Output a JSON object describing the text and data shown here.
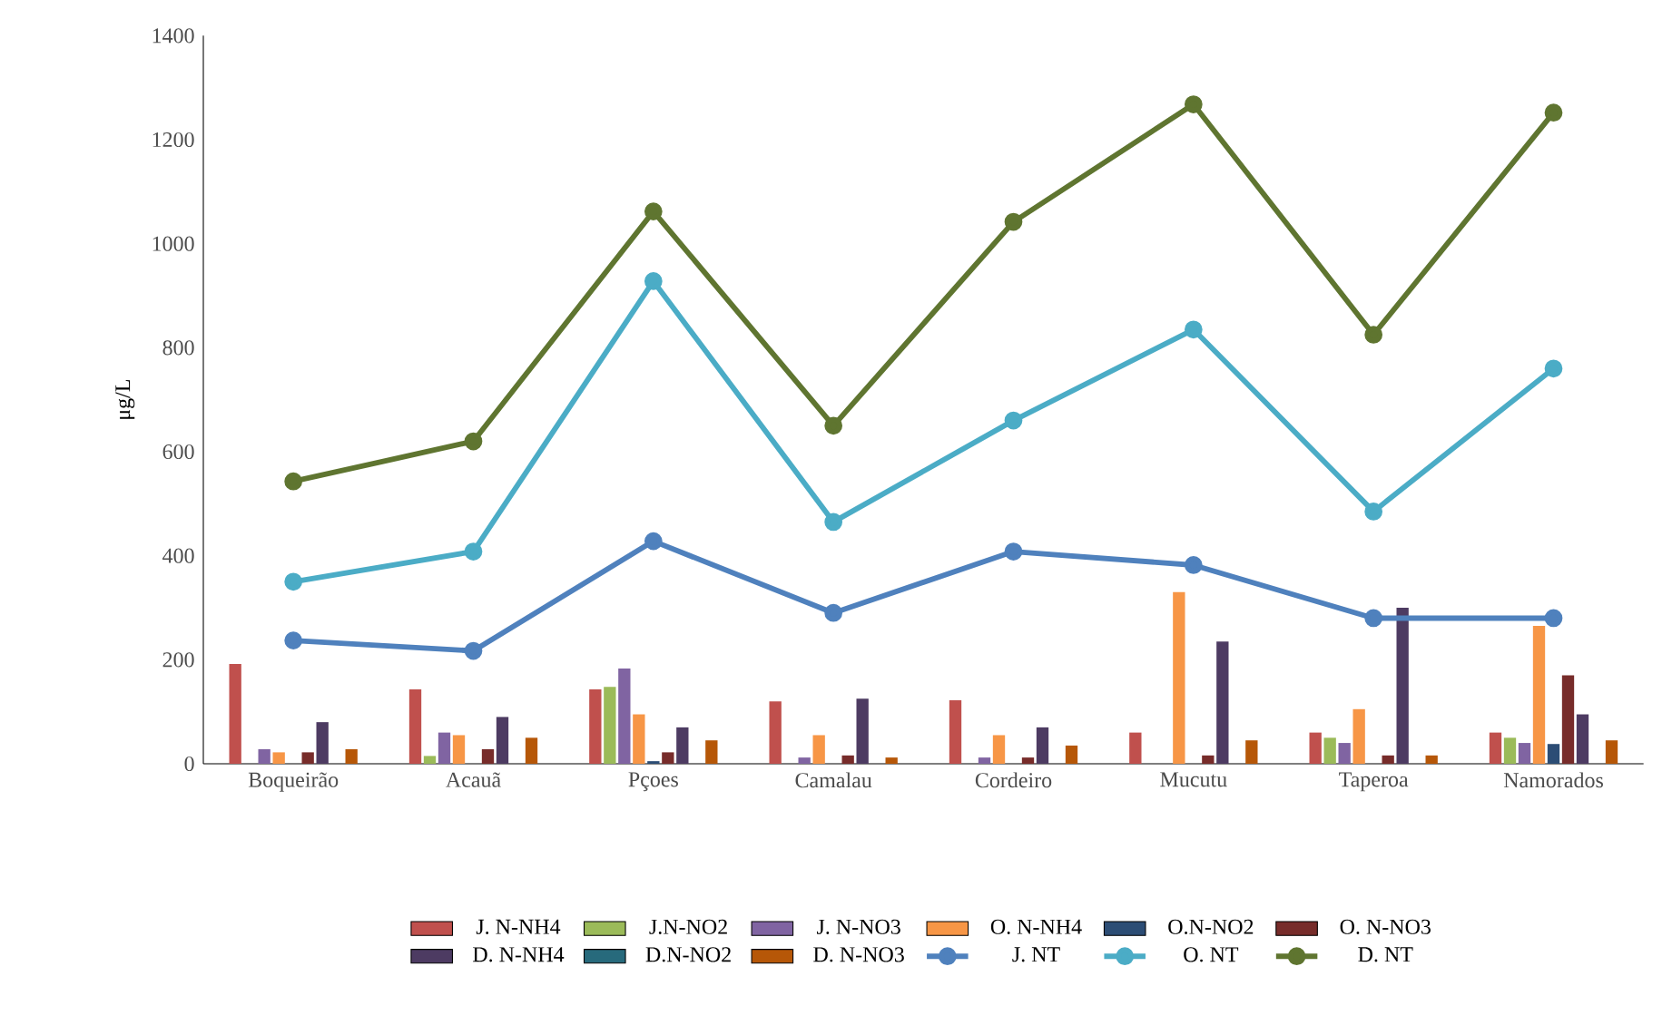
{
  "chart_data": {
    "type": "bar",
    "ylabel": "μg/L",
    "categories": [
      "Boqueirão",
      "Acauã",
      "Pçoes",
      "Camalau",
      "Cordeiro",
      "Mucutu",
      "Taperoa",
      "Namorados"
    ],
    "ylim": [
      0,
      1400
    ],
    "yticks": [
      0,
      200,
      400,
      600,
      800,
      1000,
      1200,
      1400
    ],
    "legend": "bottom",
    "marker": "circle",
    "grid": false,
    "series": [
      {
        "name": "J. N-NH4",
        "color": "#c0504d",
        "values": [
          192,
          143,
          143,
          120,
          122,
          60,
          60,
          60
        ]
      },
      {
        "name": "J.N-NO2",
        "color": "#9bbb59",
        "values": [
          0,
          15,
          148,
          0,
          0,
          0,
          50,
          50
        ]
      },
      {
        "name": "J. N-NO3",
        "color": "#8064a2",
        "values": [
          28,
          60,
          183,
          12,
          12,
          0,
          40,
          40
        ]
      },
      {
        "name": "O. N-NH4",
        "color": "#f79646",
        "values": [
          22,
          55,
          95,
          55,
          55,
          330,
          105,
          265
        ]
      },
      {
        "name": "O.N-NO2",
        "color": "#2c4d75",
        "values": [
          0,
          0,
          5,
          0,
          0,
          0,
          0,
          38
        ]
      },
      {
        "name": "O. N-NO3",
        "color": "#772c2a",
        "values": [
          22,
          28,
          22,
          16,
          12,
          16,
          16,
          170
        ]
      },
      {
        "name": "D. N-NH4",
        "color": "#4d3b62",
        "values": [
          80,
          90,
          70,
          125,
          70,
          235,
          300,
          95
        ]
      },
      {
        "name": "D.N-NO2",
        "color": "#276a7c",
        "values": [
          0,
          0,
          0,
          0,
          0,
          0,
          0,
          0
        ]
      },
      {
        "name": "D. N-NO3",
        "color": "#b65708",
        "values": [
          28,
          50,
          45,
          12,
          35,
          45,
          16,
          45
        ]
      },
      {
        "name": "J. NT",
        "type": "line",
        "color": "#4f81bd",
        "values": [
          237,
          217,
          428,
          290,
          408,
          382,
          280,
          280
        ]
      },
      {
        "name": "O. NT",
        "type": "line",
        "color": "#4bacc6",
        "values": [
          350,
          408,
          928,
          465,
          660,
          835,
          485,
          760
        ]
      },
      {
        "name": "D. NT",
        "type": "line",
        "color": "#5f7530",
        "values": [
          543,
          620,
          1062,
          650,
          1042,
          1268,
          825,
          1252
        ]
      }
    ]
  }
}
